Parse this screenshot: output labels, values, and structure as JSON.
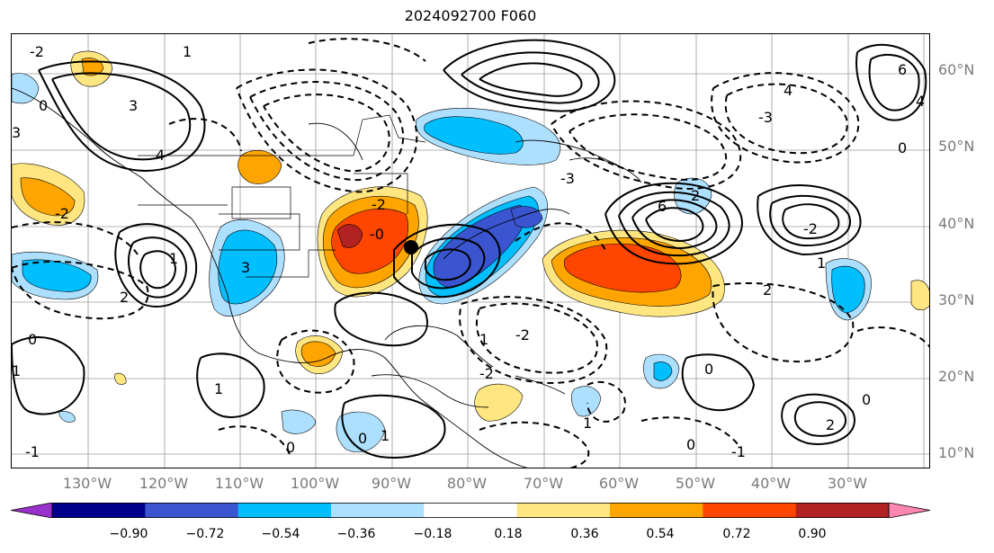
{
  "title": "2024092700 F060",
  "latitude_labels": [
    "60°N",
    "50°N",
    "40°N",
    "30°N",
    "20°N",
    "10°N"
  ],
  "longitude_labels": [
    "130°W",
    "120°W",
    "110°W",
    "100°W",
    "90°W",
    "80°W",
    "70°W",
    "60°W",
    "50°W",
    "40°W",
    "30°W"
  ],
  "colorbar": {
    "colors": [
      "#9932cc",
      "#00008b",
      "#3a55cf",
      "#00bfff",
      "#addfff",
      "#ffffff",
      "#ffe680",
      "#ffa500",
      "#ff4500",
      "#b22222",
      "#ff86b0"
    ],
    "labels": [
      "−0.90",
      "−0.72",
      "−0.54",
      "−0.36",
      "−0.18",
      "0.18",
      "0.36",
      "0.54",
      "0.72",
      "0.90"
    ]
  },
  "map": {
    "marker": "black-dot-storm-center",
    "contour_labels": [
      "1",
      "2",
      "3",
      "4",
      "0",
      "-2",
      "6",
      "2",
      "0",
      "-1",
      "1"
    ]
  }
}
